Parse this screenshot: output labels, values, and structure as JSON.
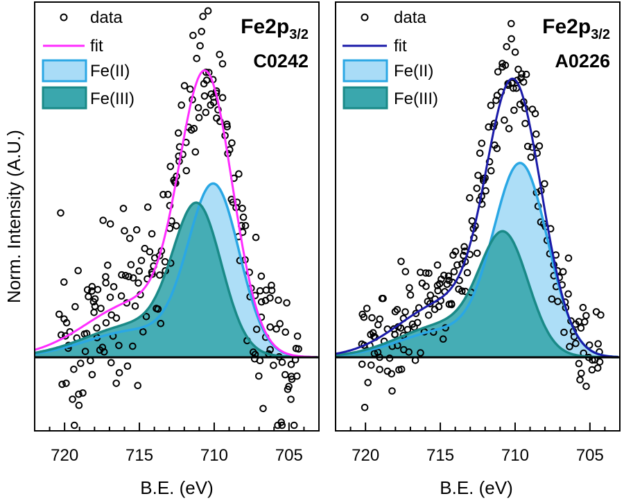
{
  "chart_data": [
    {
      "type": "scatter",
      "title": "Fe2p",
      "title_sub": "3/2",
      "sample": "C0242",
      "xlabel": "B.E. (eV)",
      "ylabel": "Norm. Intensity (A.U.)",
      "xlim": [
        722,
        703
      ],
      "ylim": [
        -0.28,
        1.3
      ],
      "xticks": [
        "720",
        "715",
        "710",
        "705"
      ],
      "fit_color": "#ff2cff",
      "legend": [
        "data",
        "fit",
        "Fe(II)",
        "Fe(III)"
      ],
      "components": [
        {
          "name": "Fe(II)",
          "center": 710.0,
          "amplitude": 0.6,
          "sigma": 1.7,
          "fill": "#a9dcf7",
          "stroke": "#2aa7e4"
        },
        {
          "name": "Fe(III)",
          "center": 711.1,
          "amplitude": 0.5,
          "sigma": 1.6,
          "fill": "#3aa7ad",
          "stroke": "#1a8a88"
        }
      ],
      "tail": {
        "center": 715.0,
        "amplitude": 0.22,
        "sigma": 3.5
      },
      "fit_peak": {
        "x": 710.4,
        "y": 1.05
      },
      "noise": 0.13
    },
    {
      "type": "scatter",
      "title": "Fe2p",
      "title_sub": "3/2",
      "sample": "A0226",
      "xlabel": "B.E. (eV)",
      "ylabel": "",
      "xlim": [
        722,
        703
      ],
      "ylim": [
        -0.28,
        1.3
      ],
      "xticks": [
        "720",
        "715",
        "710",
        "705"
      ],
      "fit_color": "#1a1aa8",
      "legend": [
        "data",
        "fit",
        "Fe(II)",
        "Fe(III)"
      ],
      "components": [
        {
          "name": "Fe(II)",
          "center": 709.6,
          "amplitude": 0.68,
          "sigma": 1.8,
          "fill": "#a9dcf7",
          "stroke": "#2aa7e4"
        },
        {
          "name": "Fe(III)",
          "center": 710.7,
          "amplitude": 0.4,
          "sigma": 1.6,
          "fill": "#3aa7ad",
          "stroke": "#1a8a88"
        }
      ],
      "tail": {
        "center": 714.5,
        "amplitude": 0.22,
        "sigma": 3.2
      },
      "fit_peak": {
        "x": 710.1,
        "y": 1.02
      },
      "noise": 0.08
    }
  ]
}
